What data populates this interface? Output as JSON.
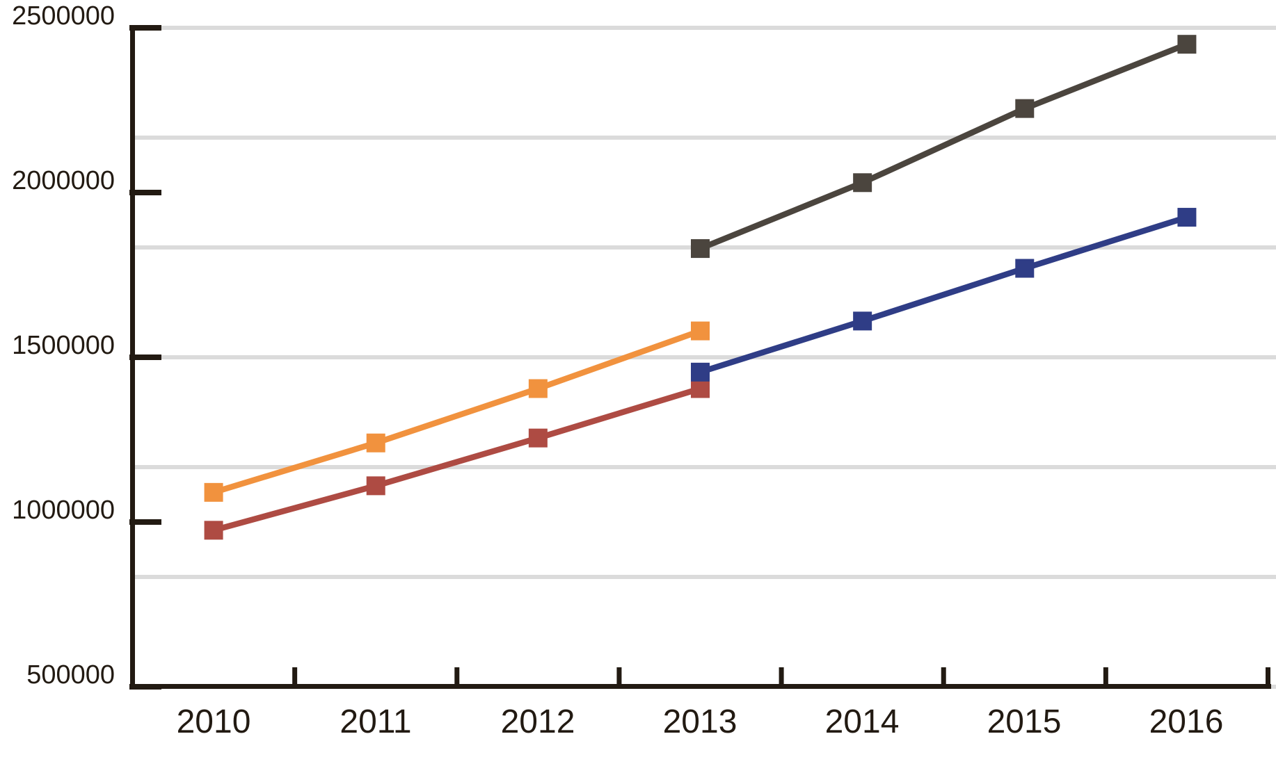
{
  "chart_data": {
    "type": "line",
    "title": "",
    "xlabel": "",
    "ylabel": "",
    "x_categories": [
      "2010",
      "2011",
      "2012",
      "2013",
      "2014",
      "2015",
      "2016"
    ],
    "y_tick_labels": [
      "2500000",
      "2000000",
      "1500000",
      "1000000",
      "500000"
    ],
    "y_tick_values": [
      2500000,
      2000000,
      1500000,
      1000000,
      500000
    ],
    "ylim": [
      500000,
      2500000
    ],
    "gridlines": "horizontal, 7 lines dividing range into 6 equal intervals",
    "legend_position": "none",
    "marker": "square",
    "background_color": "#FFFFFF",
    "axis_color": "#221A12",
    "gridline_color": "#DBDBDB",
    "series": [
      {
        "name": "brick-red-series",
        "color": "#AE4B43",
        "x": [
          "2010",
          "2011",
          "2012",
          "2013"
        ],
        "values": [
          975000,
          1110000,
          1255000,
          1405000
        ]
      },
      {
        "name": "orange-series",
        "color": "#F1923E",
        "x": [
          "2010",
          "2011",
          "2012",
          "2013"
        ],
        "values": [
          1090000,
          1240000,
          1405000,
          1580000
        ]
      },
      {
        "name": "dark-gray-series",
        "color": "#4B453E",
        "x": [
          "2013",
          "2014",
          "2015",
          "2016"
        ],
        "values": [
          1830000,
          2030000,
          2255000,
          2450000
        ]
      },
      {
        "name": "navy-series",
        "color": "#2F3D86",
        "x": [
          "2013",
          "2014",
          "2015",
          "2016"
        ],
        "values": [
          1455000,
          1610000,
          1770000,
          1925000
        ]
      }
    ]
  }
}
